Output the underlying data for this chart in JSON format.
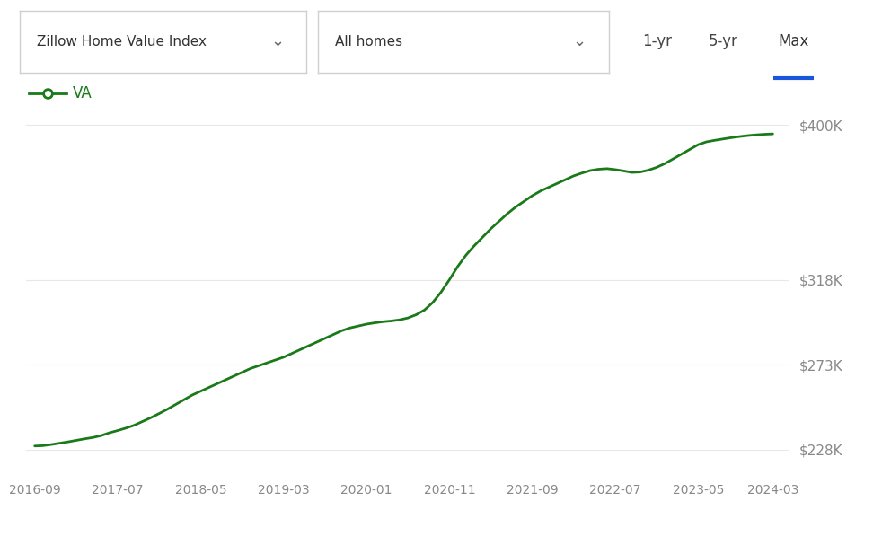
{
  "x_labels": [
    "2016-09",
    "2017-07",
    "2018-05",
    "2019-03",
    "2020-01",
    "2020-11",
    "2021-09",
    "2022-07",
    "2023-05",
    "2024-03"
  ],
  "y_ticks": [
    228000,
    273000,
    318000,
    400000
  ],
  "y_tick_labels": [
    "$228K",
    "$273K",
    "$318K",
    "$400K"
  ],
  "y_min": 215000,
  "y_max": 415000,
  "line_color": "#1a7a1a",
  "legend_label": "VA",
  "legend_color": "#1a7a1a",
  "background_color": "#ffffff",
  "grid_color": "#e8e8e8",
  "data_x": [
    0,
    1,
    2,
    3,
    4,
    5,
    6,
    7,
    8,
    9,
    10,
    11,
    12,
    13,
    14,
    15,
    16,
    17,
    18,
    19,
    20,
    21,
    22,
    23,
    24,
    25,
    26,
    27,
    28,
    29,
    30,
    31,
    32,
    33,
    34,
    35,
    36,
    37,
    38,
    39,
    40,
    41,
    42,
    43,
    44,
    45,
    46,
    47,
    48,
    49,
    50,
    51,
    52,
    53,
    54,
    55,
    56,
    57,
    58,
    59,
    60,
    61,
    62,
    63,
    64,
    65,
    66,
    67,
    68,
    69,
    70,
    71,
    72,
    73,
    74,
    75,
    76,
    77,
    78,
    79,
    80,
    81,
    82,
    83,
    84,
    85,
    86,
    87,
    88,
    89
  ],
  "data_y": [
    230000,
    230200,
    230800,
    231500,
    232200,
    233000,
    233800,
    234500,
    235500,
    237000,
    238200,
    239500,
    241000,
    243000,
    245000,
    247200,
    249500,
    252000,
    254500,
    257000,
    259000,
    261000,
    263000,
    265000,
    267000,
    269000,
    271000,
    272500,
    274000,
    275500,
    277000,
    279000,
    281000,
    283000,
    285000,
    287000,
    289000,
    291000,
    292500,
    293500,
    294500,
    295200,
    295800,
    296200,
    296800,
    297800,
    299500,
    302000,
    306000,
    311500,
    318000,
    325000,
    331000,
    336000,
    340500,
    345000,
    349000,
    353000,
    356500,
    359500,
    362500,
    365000,
    367000,
    369000,
    371000,
    373000,
    374500,
    375800,
    376500,
    376800,
    376300,
    375600,
    374800,
    375000,
    376000,
    377500,
    379500,
    382000,
    384500,
    387000,
    389500,
    391000,
    391800,
    392500,
    393200,
    393800,
    394300,
    394700,
    395000,
    395200
  ],
  "dropdown1_text": "Zillow Home Value Index",
  "dropdown2_text": "All homes",
  "btn_1yr": "1-yr",
  "btn_5yr": "5-yr",
  "btn_max": "Max",
  "active_btn_color": "#1a56db",
  "inactive_btn_color": "#444444",
  "dropdown_border": "#d0d0d0",
  "chevron_color": "#666666"
}
